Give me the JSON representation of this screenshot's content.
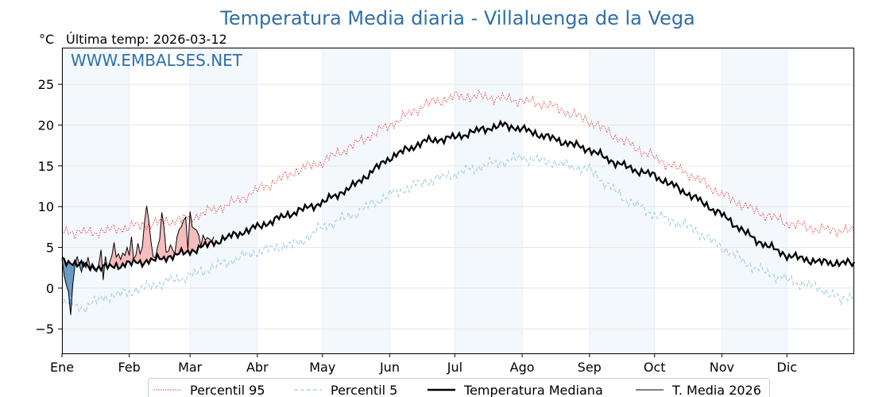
{
  "chart_data": {
    "type": "line",
    "title": "Temperatura Media diaria - Villaluenga de la Vega",
    "unit_label": "°C",
    "last_temp": "Última temp: 2026-03-12",
    "watermark": "WWW.EMBALSES.NET",
    "x_day_range": [
      1,
      366
    ],
    "ylim": [
      -8,
      29.5
    ],
    "yticks": [
      -5,
      0,
      5,
      10,
      15,
      20,
      25
    ],
    "grid": true,
    "months": [
      {
        "label": "Ene",
        "start": 1
      },
      {
        "label": "Feb",
        "start": 32
      },
      {
        "label": "Mar",
        "start": 60
      },
      {
        "label": "Abr",
        "start": 91
      },
      {
        "label": "May",
        "start": 121
      },
      {
        "label": "Jun",
        "start": 152
      },
      {
        "label": "Jul",
        "start": 182
      },
      {
        "label": "Ago",
        "start": 213
      },
      {
        "label": "Sep",
        "start": 244
      },
      {
        "label": "Oct",
        "start": 274
      },
      {
        "label": "Nov",
        "start": 305
      },
      {
        "label": "Dic",
        "start": 335
      }
    ],
    "legend_placement": "bottom-center",
    "series": [
      {
        "name": "Percentil 95",
        "color": "#e53935",
        "style": "dotted",
        "anchors": [
          [
            1,
            7.0
          ],
          [
            15,
            6.8
          ],
          [
            32,
            7.5
          ],
          [
            45,
            8.0
          ],
          [
            60,
            8.6
          ],
          [
            80,
            10.5
          ],
          [
            91,
            12.0
          ],
          [
            110,
            14.5
          ],
          [
            121,
            15.5
          ],
          [
            135,
            17.5
          ],
          [
            152,
            20.0
          ],
          [
            168,
            22.5
          ],
          [
            182,
            23.5
          ],
          [
            195,
            23.5
          ],
          [
            213,
            23.0
          ],
          [
            225,
            22.5
          ],
          [
            244,
            20.5
          ],
          [
            260,
            18.0
          ],
          [
            274,
            16.0
          ],
          [
            290,
            14.0
          ],
          [
            305,
            11.5
          ],
          [
            320,
            9.5
          ],
          [
            335,
            8.0
          ],
          [
            350,
            7.2
          ],
          [
            366,
            7.0
          ]
        ]
      },
      {
        "name": "Percentil 5",
        "color": "#9fcde0",
        "style": "dashed",
        "anchors": [
          [
            1,
            -1.5
          ],
          [
            10,
            -2.5
          ],
          [
            20,
            -1.2
          ],
          [
            32,
            -0.5
          ],
          [
            45,
            0.5
          ],
          [
            60,
            1.5
          ],
          [
            75,
            3.0
          ],
          [
            91,
            4.5
          ],
          [
            110,
            5.5
          ],
          [
            121,
            7.5
          ],
          [
            135,
            9.0
          ],
          [
            152,
            11.5
          ],
          [
            168,
            13.0
          ],
          [
            182,
            14.0
          ],
          [
            195,
            15.0
          ],
          [
            213,
            16.0
          ],
          [
            225,
            15.5
          ],
          [
            244,
            14.5
          ],
          [
            260,
            11.0
          ],
          [
            274,
            9.0
          ],
          [
            290,
            7.5
          ],
          [
            305,
            5.0
          ],
          [
            320,
            2.5
          ],
          [
            335,
            1.0
          ],
          [
            350,
            0.0
          ],
          [
            360,
            -1.5
          ],
          [
            366,
            -0.5
          ]
        ]
      },
      {
        "name": "Temperatura Mediana",
        "color": "#000000",
        "style": "solid-thick",
        "anchors": [
          [
            1,
            3.5
          ],
          [
            10,
            2.8
          ],
          [
            20,
            2.5
          ],
          [
            32,
            3.0
          ],
          [
            45,
            3.5
          ],
          [
            60,
            4.5
          ],
          [
            75,
            6.0
          ],
          [
            91,
            7.5
          ],
          [
            105,
            9.0
          ],
          [
            121,
            10.5
          ],
          [
            135,
            12.5
          ],
          [
            152,
            16.0
          ],
          [
            168,
            18.0
          ],
          [
            182,
            18.5
          ],
          [
            195,
            19.5
          ],
          [
            205,
            20.0
          ],
          [
            213,
            19.5
          ],
          [
            225,
            18.5
          ],
          [
            244,
            17.0
          ],
          [
            255,
            15.5
          ],
          [
            265,
            14.5
          ],
          [
            274,
            13.8
          ],
          [
            290,
            11.5
          ],
          [
            305,
            9.0
          ],
          [
            320,
            6.0
          ],
          [
            335,
            4.0
          ],
          [
            350,
            3.2
          ],
          [
            366,
            3.0
          ]
        ]
      },
      {
        "name": "T. Media 2026",
        "color": "#000000",
        "style": "solid-thin",
        "values": [
          3.6,
          1.5,
          0.4,
          -0.5,
          -3.3,
          0.5,
          2.8,
          3.9,
          2.8,
          2.0,
          3.2,
          2.5,
          3.8,
          2.5,
          2.6,
          2.2,
          2.0,
          3.0,
          4.7,
          1.0,
          3.9,
          2.4,
          3.2,
          4.0,
          5.6,
          3.8,
          4.2,
          3.5,
          4.3,
          4.0,
          5.0,
          4.0,
          6.3,
          3.6,
          4.0,
          5.5,
          4.2,
          5.0,
          8.0,
          10.1,
          8.3,
          5.7,
          3.9,
          3.7,
          5.0,
          6.0,
          9.3,
          7.5,
          4.4,
          4.5,
          5.3,
          4.7,
          4.2,
          6.3,
          7.2,
          7.5,
          8.3,
          8.7,
          4.7,
          9.4,
          7.5,
          7.3,
          7.1,
          6.5,
          5.1,
          6.5,
          5.9,
          6.2,
          6.0,
          5.8,
          6.3
        ]
      }
    ]
  }
}
